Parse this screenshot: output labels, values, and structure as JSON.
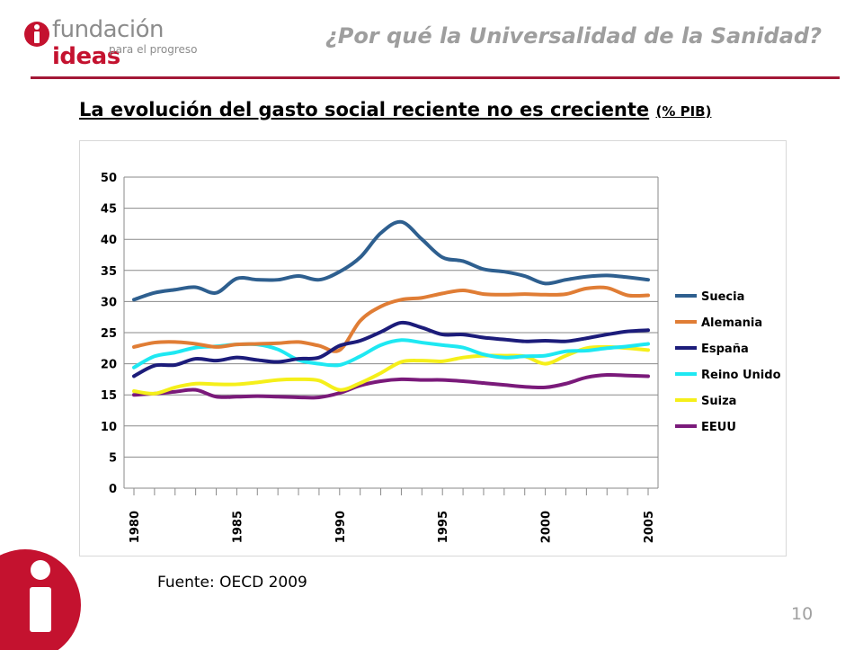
{
  "header": {
    "logo_text_prefix": "fundación ",
    "logo_text_accent": "ideas",
    "logo_tagline": "para el progreso",
    "title": "¿Por qué la Universalidad de la Sanidad?"
  },
  "slide": {
    "title_main": "La evolución del gasto social reciente no es creciente",
    "title_unit": "(% PIB)",
    "source": "Fuente: OECD 2009",
    "page_number": "10"
  },
  "colors": {
    "brand": "#c4122f",
    "rule": "#a31836",
    "header_text": "#9e9e9e"
  },
  "chart_data": {
    "type": "line",
    "title": "",
    "xlabel": "",
    "ylabel": "",
    "ylim": [
      0,
      50
    ],
    "yticks": [
      0,
      5,
      10,
      15,
      20,
      25,
      30,
      35,
      40,
      45,
      50
    ],
    "xlim": [
      1980,
      2005
    ],
    "xtick_labels": [
      "1980",
      "1985",
      "1990",
      "1995",
      "2000",
      "2005"
    ],
    "grid": "horizontal",
    "legend": "right",
    "x": [
      1980,
      1981,
      1982,
      1983,
      1984,
      1985,
      1986,
      1987,
      1988,
      1989,
      1990,
      1991,
      1992,
      1993,
      1994,
      1995,
      1996,
      1997,
      1998,
      1999,
      2000,
      2001,
      2002,
      2003,
      2004,
      2005
    ],
    "series": [
      {
        "name": "Suecia",
        "color": "#2e5f8f",
        "values": [
          30.3,
          31.4,
          31.9,
          32.3,
          31.4,
          33.7,
          33.5,
          33.5,
          34.1,
          33.5,
          34.8,
          37.1,
          41.0,
          42.8,
          40.0,
          37.1,
          36.5,
          35.2,
          34.8,
          34.1,
          32.9,
          33.5,
          34.0,
          34.2,
          33.9,
          33.5
        ]
      },
      {
        "name": "Alemania",
        "color": "#e07d35",
        "values": [
          22.7,
          23.4,
          23.5,
          23.2,
          22.7,
          23.1,
          23.2,
          23.3,
          23.5,
          22.9,
          22.2,
          26.9,
          29.2,
          30.3,
          30.6,
          31.3,
          31.8,
          31.2,
          31.1,
          31.2,
          31.1,
          31.2,
          32.1,
          32.2,
          31.0,
          31.0
        ]
      },
      {
        "name": "España",
        "color": "#1c1c7a",
        "values": [
          18.0,
          19.7,
          19.8,
          20.8,
          20.5,
          21.0,
          20.6,
          20.3,
          20.8,
          21.0,
          22.9,
          23.7,
          25.1,
          26.6,
          25.8,
          24.7,
          24.7,
          24.2,
          23.9,
          23.6,
          23.7,
          23.6,
          24.1,
          24.7,
          25.2,
          25.4
        ]
      },
      {
        "name": "Reino Unido",
        "color": "#1ee8f2",
        "values": [
          19.4,
          21.2,
          21.8,
          22.6,
          22.8,
          23.1,
          23.1,
          22.3,
          20.6,
          20.0,
          19.8,
          21.2,
          23.0,
          23.8,
          23.4,
          23.0,
          22.6,
          21.5,
          21.0,
          21.2,
          21.3,
          22.0,
          22.1,
          22.5,
          22.8,
          23.2
        ]
      },
      {
        "name": "Suiza",
        "color": "#f5ef1a",
        "values": [
          15.6,
          15.2,
          16.2,
          16.8,
          16.7,
          16.7,
          17.0,
          17.4,
          17.5,
          17.3,
          15.8,
          16.9,
          18.5,
          20.3,
          20.5,
          20.4,
          21.0,
          21.3,
          21.3,
          21.2,
          20.0,
          21.3,
          22.5,
          22.7,
          22.5,
          22.2
        ]
      },
      {
        "name": "EEUU",
        "color": "#7a1a7a",
        "values": [
          15.0,
          15.2,
          15.5,
          15.8,
          14.7,
          14.7,
          14.8,
          14.7,
          14.6,
          14.6,
          15.3,
          16.5,
          17.2,
          17.5,
          17.4,
          17.4,
          17.2,
          16.9,
          16.6,
          16.3,
          16.2,
          16.8,
          17.8,
          18.2,
          18.1,
          18.0
        ]
      }
    ]
  }
}
